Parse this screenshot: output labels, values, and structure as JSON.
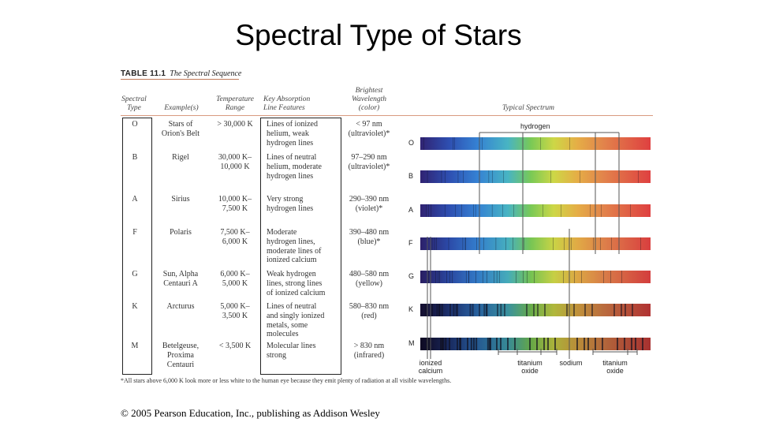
{
  "slide_title": "Spectral Type of Stars",
  "table": {
    "number": "TABLE 11.1",
    "caption": "The Spectral Sequence",
    "headers": {
      "spectral_type": [
        "Spectral",
        "Type"
      ],
      "examples": [
        "Example(s)"
      ],
      "temperature": [
        "Temperature",
        "Range"
      ],
      "absorption": [
        "Key Absorption",
        "Line Features"
      ],
      "wavelength": [
        "Brightest",
        "Wavelength",
        "(color)"
      ],
      "spectrum": [
        "Typical Spectrum"
      ]
    },
    "rows": [
      {
        "type": "O",
        "examples": [
          "Stars of",
          "Orion's Belt"
        ],
        "temp": [
          "> 30,000 K"
        ],
        "lines": [
          "Lines of ionized",
          "helium, weak",
          "hydrogen lines"
        ],
        "wave": [
          "< 97 nm",
          "(ultraviolet)*"
        ]
      },
      {
        "type": "B",
        "examples": [
          "Rigel"
        ],
        "temp": [
          "30,000 K–",
          "10,000 K"
        ],
        "lines": [
          "Lines of neutral",
          "helium, moderate",
          "hydrogen lines"
        ],
        "wave": [
          "97–290 nm",
          "(ultraviolet)*"
        ]
      },
      {
        "type": "A",
        "examples": [
          "Sirius"
        ],
        "temp": [
          "10,000 K–",
          "7,500 K"
        ],
        "lines": [
          "Very strong",
          "hydrogen lines"
        ],
        "wave": [
          "290–390 nm",
          "(violet)*"
        ]
      },
      {
        "type": "F",
        "examples": [
          "Polaris"
        ],
        "temp": [
          "7,500 K–",
          "6,000 K"
        ],
        "lines": [
          "Moderate",
          "hydrogen lines,",
          "moderate lines of",
          "ionized calcium"
        ],
        "wave": [
          "390–480 nm",
          "(blue)*"
        ]
      },
      {
        "type": "G",
        "examples": [
          "Sun, Alpha",
          "Centauri A"
        ],
        "temp": [
          "6,000 K–",
          "5,000 K"
        ],
        "lines": [
          "Weak hydrogen",
          "lines, strong lines",
          "of ionized calcium"
        ],
        "wave": [
          "480–580 nm",
          "(yellow)"
        ]
      },
      {
        "type": "K",
        "examples": [
          "Arcturus"
        ],
        "temp": [
          "5,000 K–",
          "3,500 K"
        ],
        "lines": [
          "Lines of neutral",
          "and singly ionized",
          "metals, some",
          "molecules"
        ],
        "wave": [
          "580–830 nm",
          "(red)"
        ]
      },
      {
        "type": "M",
        "examples": [
          "Betelgeuse,",
          "Proxima",
          "Centauri"
        ],
        "temp": [
          "< 3,500 K"
        ],
        "lines": [
          "Molecular lines",
          "strong"
        ],
        "wave": [
          "> 830 nm",
          "(infrared)"
        ]
      }
    ],
    "spectrum_labels": {
      "hydrogen": "hydrogen",
      "ionized_calcium": [
        "ionized",
        "calcium"
      ],
      "titanium_oxide_1": [
        "titanium",
        "oxide"
      ],
      "sodium": "sodium",
      "titanium_oxide_2": [
        "titanium",
        "oxide"
      ]
    },
    "footnote": "*All stars above 6,000 K look more or less white to the human eye because they emit plenty of radiation at all visible wavelengths."
  },
  "copyright": "© 2005 Pearson Education, Inc., publishing as Addison Wesley",
  "colors": {
    "box_border": "#222222",
    "header_rule": "#d99a80",
    "spectrum_line": "#555555"
  }
}
